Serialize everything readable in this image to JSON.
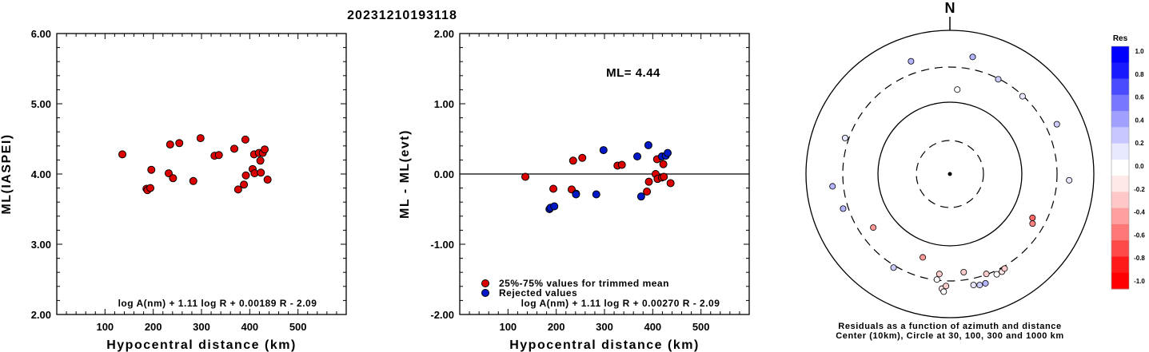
{
  "event_id": "20231210193118",
  "chart_data": [
    {
      "type": "scatter",
      "xlabel": "Hypocentral distance (km)",
      "ylabel": "ML(IASPEI)",
      "xlim": [
        0,
        600
      ],
      "ylim": [
        2.0,
        6.0
      ],
      "x_ticks": [
        "100",
        "200",
        "300",
        "400",
        "500"
      ],
      "y_ticks": [
        "2.00",
        "3.00",
        "4.00",
        "5.00",
        "6.00"
      ],
      "formula": "log A(nm) + 1.11 log R + 0.00189 R - 2.09",
      "points": [
        {
          "x": 136,
          "y": 4.28
        },
        {
          "x": 186,
          "y": 3.79
        },
        {
          "x": 188,
          "y": 3.77
        },
        {
          "x": 194,
          "y": 3.8
        },
        {
          "x": 196,
          "y": 4.06
        },
        {
          "x": 232,
          "y": 4.01
        },
        {
          "x": 235,
          "y": 4.42
        },
        {
          "x": 241,
          "y": 3.94
        },
        {
          "x": 254,
          "y": 4.44
        },
        {
          "x": 283,
          "y": 3.9
        },
        {
          "x": 298,
          "y": 4.51
        },
        {
          "x": 327,
          "y": 4.26
        },
        {
          "x": 336,
          "y": 4.27
        },
        {
          "x": 368,
          "y": 4.36
        },
        {
          "x": 376,
          "y": 3.78
        },
        {
          "x": 388,
          "y": 3.85
        },
        {
          "x": 391,
          "y": 4.49
        },
        {
          "x": 392,
          "y": 3.98
        },
        {
          "x": 406,
          "y": 4.07
        },
        {
          "x": 409,
          "y": 4.28
        },
        {
          "x": 410,
          "y": 4.01
        },
        {
          "x": 419,
          "y": 4.3
        },
        {
          "x": 422,
          "y": 4.19
        },
        {
          "x": 423,
          "y": 4.02
        },
        {
          "x": 427,
          "y": 4.3
        },
        {
          "x": 431,
          "y": 4.35
        },
        {
          "x": 437,
          "y": 3.92
        }
      ],
      "grid": false
    },
    {
      "type": "scatter",
      "xlabel": "Hypocentral distance (km)",
      "ylabel": "ML - ML(evt)",
      "xlim": [
        0,
        600
      ],
      "ylim": [
        -2.0,
        2.0
      ],
      "x_ticks": [
        "100",
        "200",
        "300",
        "400",
        "500"
      ],
      "y_ticks": [
        "-2.00",
        "-1.00",
        "0.00",
        "1.00",
        "2.00"
      ],
      "ml_label": "ML= 4.44",
      "formula": "log A(nm) + 1.11 log R + 0.00270 R - 2.09",
      "legend": {
        "position": "bottom-left",
        "entries": [
          "25%-75% values for trimmed mean",
          "Rejected values"
        ]
      },
      "colors": {
        "used": "#dd0000",
        "rejected": "#0018c8"
      },
      "series": [
        {
          "name": "25%-75% values for trimmed mean",
          "points": [
            {
              "x": 136,
              "y": -0.04
            },
            {
              "x": 194,
              "y": -0.21
            },
            {
              "x": 232,
              "y": -0.22
            },
            {
              "x": 235,
              "y": 0.19
            },
            {
              "x": 241,
              "y": -0.28
            },
            {
              "x": 254,
              "y": 0.23
            },
            {
              "x": 327,
              "y": 0.12
            },
            {
              "x": 336,
              "y": 0.13
            },
            {
              "x": 388,
              "y": -0.25
            },
            {
              "x": 392,
              "y": -0.11
            },
            {
              "x": 406,
              "y": 0.0
            },
            {
              "x": 409,
              "y": 0.21
            },
            {
              "x": 410,
              "y": -0.07
            },
            {
              "x": 419,
              "y": -0.05
            },
            {
              "x": 422,
              "y": 0.14
            },
            {
              "x": 423,
              "y": -0.04
            },
            {
              "x": 437,
              "y": -0.13
            }
          ]
        },
        {
          "name": "Rejected values",
          "points": [
            {
              "x": 186,
              "y": -0.5
            },
            {
              "x": 188,
              "y": -0.48
            },
            {
              "x": 196,
              "y": -0.46
            },
            {
              "x": 241,
              "y": -0.29
            },
            {
              "x": 283,
              "y": -0.29
            },
            {
              "x": 298,
              "y": 0.34
            },
            {
              "x": 368,
              "y": 0.25
            },
            {
              "x": 376,
              "y": -0.32
            },
            {
              "x": 391,
              "y": 0.41
            },
            {
              "x": 419,
              "y": 0.25
            },
            {
              "x": 427,
              "y": 0.26
            },
            {
              "x": 431,
              "y": 0.3
            }
          ]
        }
      ],
      "grid": false
    }
  ],
  "polar": {
    "north_label": "N",
    "caption_line1": "Residuals as a function of azimuth and distance",
    "caption_line2": "Center (10km), Circle at 30, 100, 300 and 1000 km",
    "stations": [
      {
        "az": -19,
        "d": 0.83,
        "res": 0.3
      },
      {
        "az": 11,
        "d": 0.83,
        "res": 0.3
      },
      {
        "az": 27,
        "d": 0.74,
        "res": 0.2
      },
      {
        "az": 43,
        "d": 0.74,
        "res": 0.1
      },
      {
        "az": 65,
        "d": 0.82,
        "res": 0.2
      },
      {
        "az": 93,
        "d": 0.83,
        "res": 0.1
      },
      {
        "az": -71,
        "d": 0.77,
        "res": 0.1
      },
      {
        "az": -96,
        "d": 0.82,
        "res": 0.3
      },
      {
        "az": -108,
        "d": 0.78,
        "res": 0.3
      },
      {
        "az": -125,
        "d": 0.65,
        "res": -0.4
      },
      {
        "az": -149,
        "d": 0.76,
        "res": 0.2
      },
      {
        "az": -162,
        "d": 0.61,
        "res": -0.4
      },
      {
        "az": -173,
        "d": 0.74,
        "res": 0.0
      },
      {
        "az": -174,
        "d": 0.7,
        "res": -0.2
      },
      {
        "az": -176,
        "d": 0.8,
        "res": -0.1
      },
      {
        "az": -177,
        "d": 0.82,
        "res": 0.0
      },
      {
        "az": -178,
        "d": 0.78,
        "res": -0.2
      },
      {
        "az": 172,
        "d": 0.69,
        "res": -0.2
      },
      {
        "az": 168,
        "d": 0.79,
        "res": 0.1
      },
      {
        "az": 165,
        "d": 0.8,
        "res": 0.2
      },
      {
        "az": 162,
        "d": 0.8,
        "res": 0.3
      },
      {
        "az": 160,
        "d": 0.74,
        "res": -0.2
      },
      {
        "az": 155,
        "d": 0.77,
        "res": 0.0
      },
      {
        "az": 152,
        "d": 0.77,
        "res": -0.1
      },
      {
        "az": 150,
        "d": 0.76,
        "res": -0.2
      },
      {
        "az": 121,
        "d": 0.67,
        "res": -0.5
      },
      {
        "az": 118,
        "d": 0.65,
        "res": -0.6
      },
      {
        "az": 5,
        "d": 0.59,
        "res": 0.0
      }
    ]
  },
  "colorbar": {
    "title": "Res",
    "labels": [
      "1.0",
      "0.8",
      "0.6",
      "0.4",
      "0.2",
      "0.0",
      "-0.2",
      "-0.4",
      "-0.6",
      "-0.8",
      "-1.0"
    ],
    "colors": [
      "#0000ff",
      "#1a1aff",
      "#4a4aff",
      "#7878ff",
      "#a0a0ff",
      "#c8c8ff",
      "#e8e8ff",
      "#ffffff",
      "#ffe8e8",
      "#ffc8c8",
      "#ffa0a0",
      "#ff7878",
      "#ff4a4a",
      "#ff1a1a",
      "#ff0000"
    ]
  }
}
